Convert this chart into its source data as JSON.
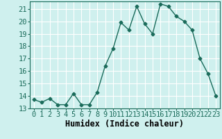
{
  "x": [
    0,
    1,
    2,
    3,
    4,
    5,
    6,
    7,
    8,
    9,
    10,
    11,
    12,
    13,
    14,
    15,
    16,
    17,
    18,
    19,
    20,
    21,
    22,
    23
  ],
  "y": [
    13.7,
    13.5,
    13.8,
    13.3,
    13.3,
    14.2,
    13.3,
    13.3,
    14.3,
    16.4,
    17.8,
    19.9,
    19.3,
    21.2,
    19.8,
    19.0,
    21.4,
    21.2,
    20.4,
    20.0,
    19.3,
    17.0,
    15.8,
    14.0
  ],
  "xlim": [
    -0.5,
    23.5
  ],
  "ylim": [
    13,
    21.6
  ],
  "yticks": [
    13,
    14,
    15,
    16,
    17,
    18,
    19,
    20,
    21
  ],
  "xticks": [
    0,
    1,
    2,
    3,
    4,
    5,
    6,
    7,
    8,
    9,
    10,
    11,
    12,
    13,
    14,
    15,
    16,
    17,
    18,
    19,
    20,
    21,
    22,
    23
  ],
  "xlabel": "Humidex (Indice chaleur)",
  "line_color": "#1a6b5a",
  "marker": "D",
  "marker_size": 2.5,
  "bg_color": "#cff0ee",
  "grid_color": "#ffffff",
  "tick_label_fontsize": 7.5,
  "xlabel_fontsize": 8.5
}
